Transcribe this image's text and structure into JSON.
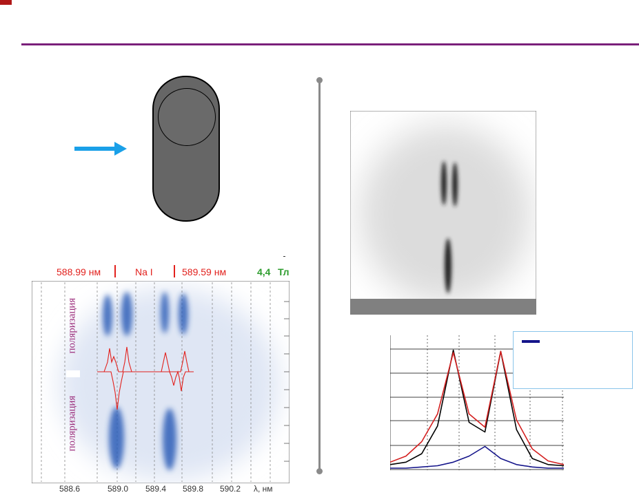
{
  "spectrum_header": {
    "line_left": "588.99 нм",
    "element": "Na I",
    "line_right": "589.59 нм",
    "field_value": "4,4",
    "field_unit": "Тл"
  },
  "spectrum_axis": {
    "ticks": [
      "588.6",
      "589.0",
      "589.4",
      "589.8",
      "590.2",
      "λ, нм"
    ]
  },
  "spectrum_labels": {
    "pol_top": "поляризация",
    "pol_bottom": "поляризация"
  },
  "colors": {
    "accent_rule": "#7a1f7a",
    "wavelength_red": "#e2201c",
    "field_green": "#2e9d2e",
    "arrow_blue": "#1aa0e8",
    "legend_border": "#89c4ea"
  },
  "icons": [
    "arrow-right-icon"
  ],
  "chart_data": {
    "type": "line",
    "series": [
      {
        "color": "#000000",
        "values": [
          0.03,
          0.05,
          0.12,
          0.35,
          0.98,
          0.38,
          0.3,
          0.97,
          0.32,
          0.08,
          0.03,
          0.02
        ]
      },
      {
        "color": "#d42020",
        "values": [
          0.05,
          0.1,
          0.22,
          0.45,
          0.96,
          0.45,
          0.34,
          0.97,
          0.4,
          0.16,
          0.06,
          0.03
        ]
      },
      {
        "color": "#14148a",
        "values": [
          0.0,
          0.0,
          0.01,
          0.02,
          0.05,
          0.1,
          0.18,
          0.08,
          0.03,
          0.01,
          0.0,
          0.0
        ]
      }
    ],
    "grid": true,
    "legend": "top-right"
  }
}
